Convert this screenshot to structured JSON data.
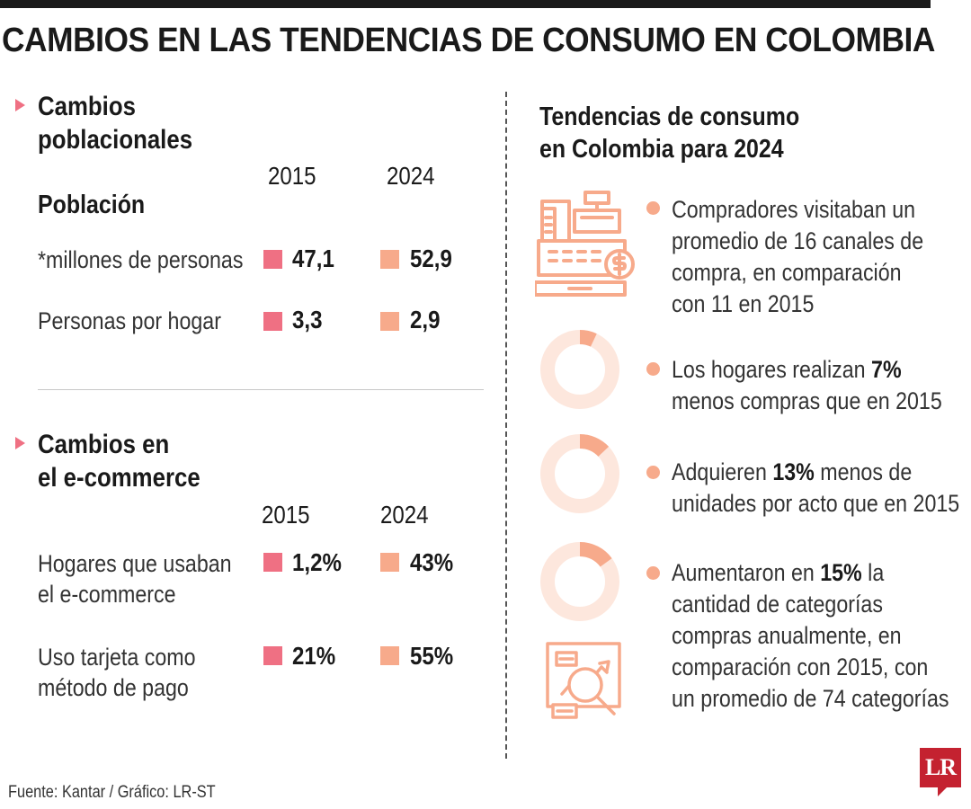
{
  "title": "CAMBIOS EN LAS TENDENCIAS DE CONSUMO EN COLOMBIA",
  "colors": {
    "year_2015": "#ef7083",
    "year_2024": "#f7aa8b",
    "accent": "#ef7083",
    "logo": "#c42230",
    "donut_track": "#fde7dd",
    "donut_fill": "#f7aa8b"
  },
  "poblacion": {
    "title_lines": [
      "Cambios",
      "poblacionales"
    ],
    "years": [
      "2015",
      "2024"
    ],
    "subtitle": "Población",
    "rows": [
      {
        "label_lines": [
          "*millones de personas"
        ],
        "v2015": "47,1",
        "v2024": "52,9"
      },
      {
        "label_lines": [
          "Personas por hogar"
        ],
        "v2015": "3,3",
        "v2024": "2,9"
      }
    ]
  },
  "ecommerce": {
    "title_lines": [
      "Cambios en",
      "el e-commerce"
    ],
    "years": [
      "2015",
      "2024"
    ],
    "rows": [
      {
        "label_lines": [
          "Hogares que usaban",
          "el e-commerce"
        ],
        "v2015": "1,2%",
        "v2024": "43%"
      },
      {
        "label_lines": [
          "Uso tarjeta como",
          "método de pago"
        ],
        "v2015": "21%",
        "v2024": "55%"
      }
    ]
  },
  "tendencias": {
    "title_lines": [
      "Tendencias de consumo",
      "en Colombia para 2024"
    ],
    "items": [
      {
        "icon": "cash-register-icon",
        "lines": [
          {
            "text": "Compradores visitaban un"
          },
          {
            "text": "promedio de 16 canales de"
          },
          {
            "text": "compra, en comparación"
          },
          {
            "text": "con 11 en 2015"
          }
        ]
      },
      {
        "icon": "donut-7-icon",
        "lines": [
          {
            "pre": "Los hogares realizan ",
            "bold": "7%",
            "post": ""
          },
          {
            "text": "menos compras que en 2015"
          }
        ]
      },
      {
        "icon": "donut-13-icon",
        "lines": [
          {
            "pre": "Adquieren ",
            "bold": "13%",
            "post": " menos de"
          },
          {
            "text": "unidades por acto que en 2015"
          }
        ]
      },
      {
        "icon": "donut-15-icon",
        "lines": [
          {
            "pre": "Aumentaron en ",
            "bold": "15%",
            "post": " la"
          },
          {
            "text": "cantidad de categorías"
          },
          {
            "text": "compras anualmente, en"
          },
          {
            "text": "comparación con 2015, con"
          },
          {
            "text": "un promedio de 74 categorías"
          }
        ]
      }
    ]
  },
  "chart_data": {
    "type": "table",
    "title": "CAMBIOS EN LAS TENDENCIAS DE CONSUMO EN COLOMBIA",
    "categories": [
      "2015",
      "2024"
    ],
    "series": [
      {
        "name": "*millones de personas",
        "values": [
          47.1,
          52.9
        ]
      },
      {
        "name": "Personas por hogar",
        "values": [
          3.3,
          2.9
        ]
      },
      {
        "name": "Hogares que usaban el e-commerce (%)",
        "values": [
          1.2,
          43
        ]
      },
      {
        "name": "Uso tarjeta como método de pago (%)",
        "values": [
          21,
          55
        ]
      }
    ],
    "donuts": [
      {
        "label": "Los hogares realizan 7% menos compras que en 2015",
        "percent": 7
      },
      {
        "label": "Adquieren 13% menos de unidades por acto que en 2015",
        "percent": 13
      },
      {
        "label": "Aumentaron en 15% la cantidad de categorías",
        "percent": 15
      }
    ]
  },
  "footer": {
    "source": "Fuente: Kantar / Gráfico: LR-ST",
    "logo": "LR"
  }
}
